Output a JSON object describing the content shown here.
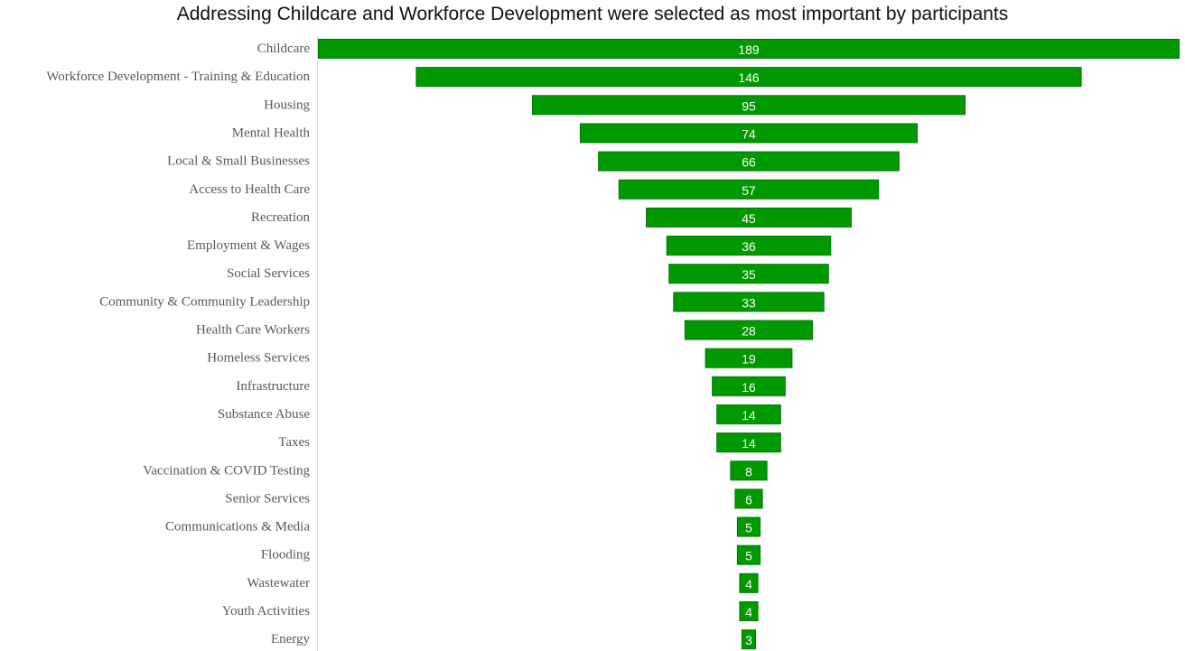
{
  "chart_data": {
    "type": "bar",
    "orientation": "horizontal-funnel",
    "title": "Addressing Childcare and Workforce Development were selected as most important by participants",
    "categories": [
      "Childcare",
      "Workforce Development - Training & Education",
      "Housing",
      "Mental Health",
      "Local & Small Businesses",
      "Access to Health Care",
      "Recreation",
      "Employment & Wages",
      "Social Services",
      "Community & Community Leadership",
      "Health Care Workers",
      "Homeless Services",
      "Infrastructure",
      "Substance Abuse",
      "Taxes",
      "Vaccination & COVID Testing",
      "Senior Services",
      "Communications & Media",
      "Flooding",
      "Wastewater",
      "Youth Activities",
      "Energy"
    ],
    "values": [
      189,
      146,
      95,
      74,
      66,
      57,
      45,
      36,
      35,
      33,
      28,
      19,
      16,
      14,
      14,
      8,
      6,
      5,
      5,
      4,
      4,
      3
    ],
    "xlabel": "",
    "ylabel": "",
    "grid": false,
    "legend": "none",
    "bar_color": "#009900",
    "bar_border_color": "#00770a",
    "label_color": "#595959",
    "value_label_color": "#ffffff"
  }
}
